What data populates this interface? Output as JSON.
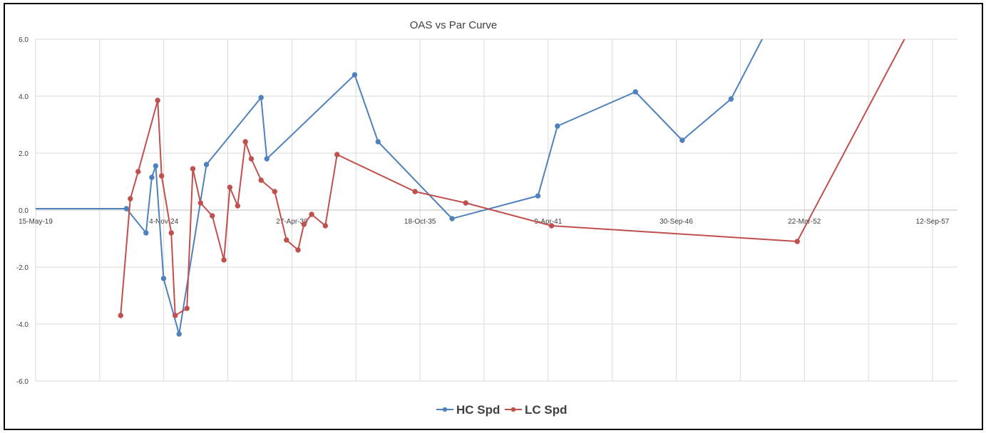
{
  "chart_data": {
    "type": "line",
    "title": "OAS vs Par Curve",
    "xlabel": "",
    "ylabel": "",
    "ylim": [
      -6.0,
      6.0
    ],
    "y_ticks": [
      "6.0",
      "4.0",
      "2.0",
      "0.0",
      "-2.0",
      "-4.0",
      "-6.0"
    ],
    "y_tick_values": [
      6,
      4,
      2,
      0,
      -2,
      -4,
      -6
    ],
    "x_ticks": [
      "15-May-19",
      "4-Nov-24",
      "27-Apr-30",
      "18-Oct-35",
      "9-Apr-41",
      "30-Sep-46",
      "22-Mar-52",
      "12-Sep-57"
    ],
    "x_tick_dates": [
      "2019-05-15",
      "2024-11-04",
      "2030-04-27",
      "2035-10-18",
      "2041-04-09",
      "2046-09-30",
      "2052-03-22",
      "2057-09-12"
    ],
    "xlim": [
      "2019-05-15",
      "2060-09-01"
    ],
    "grid": true,
    "legend_position": "bottom",
    "series": [
      {
        "name": "HC Spd",
        "color": "#4F81BD",
        "points": [
          [
            "2019-05-15",
            0.05
          ],
          [
            "2023-04-01",
            0.05
          ],
          [
            "2024-02-01",
            -0.8
          ],
          [
            "2024-05-01",
            1.15
          ],
          [
            "2024-07-01",
            1.55
          ],
          [
            "2024-11-01",
            -2.4
          ],
          [
            "2025-07-01",
            -4.35
          ],
          [
            "2026-09-01",
            1.6
          ],
          [
            "2029-01-01",
            3.95
          ],
          [
            "2029-04-01",
            1.8
          ],
          [
            "2033-01-01",
            4.75
          ],
          [
            "2034-01-01",
            2.4
          ],
          [
            "2037-03-01",
            -0.3
          ],
          [
            "2040-11-01",
            0.5
          ],
          [
            "2041-09-01",
            2.95
          ],
          [
            "2045-01-01",
            4.15
          ],
          [
            "2047-01-01",
            2.45
          ],
          [
            "2049-02-01",
            3.9
          ],
          [
            "2050-06-01",
            6.0
          ]
        ]
      },
      {
        "name": "LC Spd",
        "color": "#C0504D",
        "points": [
          [
            "2023-01-01",
            -3.7
          ],
          [
            "2023-06-01",
            0.4
          ],
          [
            "2023-10-01",
            1.35
          ],
          [
            "2024-08-01",
            3.85
          ],
          [
            "2024-10-01",
            1.2
          ],
          [
            "2025-03-01",
            -0.8
          ],
          [
            "2025-05-01",
            -3.7
          ],
          [
            "2025-11-01",
            -3.45
          ],
          [
            "2026-02-01",
            1.45
          ],
          [
            "2026-06-01",
            0.25
          ],
          [
            "2026-12-01",
            -0.2
          ],
          [
            "2027-06-01",
            -1.75
          ],
          [
            "2027-09-01",
            0.8
          ],
          [
            "2028-01-01",
            0.15
          ],
          [
            "2028-05-01",
            2.4
          ],
          [
            "2028-08-01",
            1.8
          ],
          [
            "2029-01-01",
            1.05
          ],
          [
            "2029-08-01",
            0.65
          ],
          [
            "2030-02-01",
            -1.05
          ],
          [
            "2030-08-01",
            -1.4
          ],
          [
            "2030-11-01",
            -0.5
          ],
          [
            "2031-03-01",
            -0.15
          ],
          [
            "2031-10-01",
            -0.55
          ],
          [
            "2032-04-01",
            1.95
          ],
          [
            "2035-08-01",
            0.65
          ],
          [
            "2037-10-01",
            0.25
          ],
          [
            "2041-06-01",
            -0.55
          ],
          [
            "2051-12-01",
            -1.1
          ],
          [
            "2056-07-01",
            6.0
          ]
        ]
      }
    ]
  }
}
